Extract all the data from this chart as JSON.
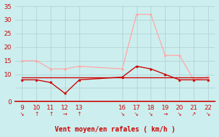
{
  "x_ticks": [
    9,
    10,
    11,
    12,
    13,
    16,
    17,
    18,
    19,
    20,
    21,
    22
  ],
  "wind_avg": [
    8,
    8,
    7,
    3,
    8,
    9,
    13,
    12,
    10,
    8,
    8,
    8
  ],
  "wind_gust": [
    15,
    15,
    12,
    12,
    13,
    12,
    32,
    32,
    17,
    17,
    8,
    9
  ],
  "wind_flat": [
    9,
    9,
    9,
    9,
    9,
    9,
    9,
    9,
    9,
    9,
    9,
    9
  ],
  "color_avg": "#cc0000",
  "color_gust": "#ffaaaa",
  "color_flat": "#cc0000",
  "bg_color": "#cceeee",
  "grid_color": "#aacccc",
  "xlabel": "Vent moyen/en rafales ( km/h )",
  "xlabel_color": "#cc0000",
  "ylim": [
    0,
    35
  ],
  "yticks": [
    0,
    5,
    10,
    15,
    20,
    25,
    30,
    35
  ],
  "ytick_labels": [
    "0",
    "",
    "10",
    "15",
    "20",
    "25",
    "30",
    "35"
  ],
  "arrow_labels": [
    "↘",
    "↑",
    "↑",
    "→",
    "↑",
    "↘",
    "↘",
    "↘",
    "→",
    "↘",
    "↗",
    "↘"
  ],
  "tick_fontsize": 6.5,
  "label_fontsize": 7
}
